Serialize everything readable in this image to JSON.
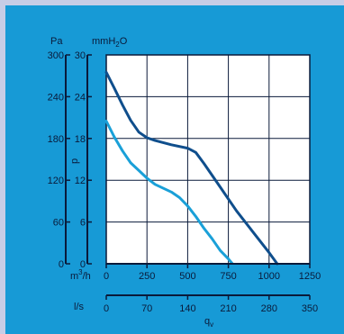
{
  "chart_data": {
    "type": "line",
    "y_axes": {
      "pa": {
        "label": "Pa",
        "ticks": [
          0,
          60,
          120,
          180,
          240,
          300
        ],
        "range": [
          0,
          300
        ]
      },
      "mmh2o": {
        "label_main": "mmH",
        "label_sub": "2",
        "label_tail": "O",
        "ticks": [
          0,
          6,
          12,
          18,
          24,
          30
        ],
        "range": [
          0,
          30
        ]
      },
      "symbol": "p"
    },
    "x_axes": {
      "m3h": {
        "label_main": "m",
        "label_sup": "3",
        "label_tail": "/h",
        "ticks": [
          0,
          250,
          500,
          750,
          1000,
          1250
        ],
        "range": [
          0,
          1250
        ]
      },
      "ls": {
        "label": "l/s",
        "ticks": [
          0,
          70,
          140,
          210,
          280,
          350
        ]
      },
      "symbol_main": "q",
      "symbol_sub": "v"
    },
    "grid": true,
    "series": [
      {
        "color": "#0f4e8c",
        "x": [
          0,
          50,
          100,
          150,
          200,
          250,
          300,
          400,
          500,
          550,
          600,
          700,
          800,
          900,
          1000,
          1050
        ],
        "y": [
          27.5,
          25.2,
          22.8,
          20.6,
          18.9,
          18.1,
          17.7,
          17.1,
          16.6,
          16.0,
          14.4,
          11.0,
          7.6,
          4.6,
          1.6,
          0.0
        ]
      },
      {
        "color": "#1aa0d8",
        "x": [
          0,
          50,
          100,
          150,
          200,
          250,
          300,
          400,
          450,
          500,
          550,
          600,
          650,
          700,
          750,
          775
        ],
        "y": [
          20.5,
          18.2,
          16.2,
          14.5,
          13.4,
          12.3,
          11.4,
          10.3,
          9.5,
          8.3,
          6.8,
          5.1,
          3.6,
          1.9,
          0.7,
          0.0
        ]
      }
    ]
  }
}
